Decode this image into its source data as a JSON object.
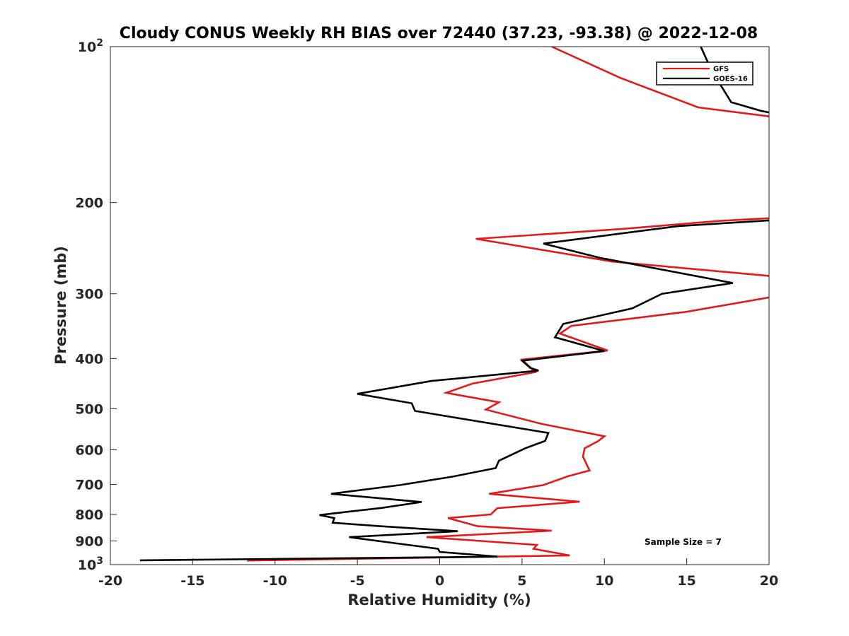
{
  "chart_data": {
    "type": "line",
    "title": "Cloudy CONUS Weekly RH BIAS over 72440 (37.23, -93.38) @ 2022-12-08",
    "xlabel": "Relative Humidity (%)",
    "ylabel": "Pressure (mb)",
    "xlim": [
      -20,
      20
    ],
    "ylim": [
      100,
      1000
    ],
    "y_scale": "log",
    "y_reversed": true,
    "x_ticks": [
      "-20",
      "-15",
      "-10",
      "-5",
      "0",
      "5",
      "10",
      "15",
      "20"
    ],
    "y_ticks": [
      {
        "value": 100,
        "base": "10",
        "exp": "2"
      },
      {
        "value": 200,
        "label": "200"
      },
      {
        "value": 300,
        "label": "300"
      },
      {
        "value": 400,
        "label": "400"
      },
      {
        "value": 500,
        "label": "500"
      },
      {
        "value": 600,
        "label": "600"
      },
      {
        "value": 700,
        "label": "700"
      },
      {
        "value": 800,
        "label": "800"
      },
      {
        "value": 900,
        "label": "900"
      },
      {
        "value": 1000,
        "base": "10",
        "exp": "3"
      }
    ],
    "grid": false,
    "legend_position": "top-right",
    "annotation": "Sample Size = 7",
    "series": [
      {
        "name": "GFS",
        "color": "#e31a1c",
        "points": [
          [
            6.8,
            100
          ],
          [
            11,
            115
          ],
          [
            15.7,
            131
          ],
          [
            20.5,
            137
          ],
          [
            20.5,
            214
          ],
          [
            17,
            217
          ],
          [
            11,
            225
          ],
          [
            2.2,
            235
          ],
          [
            10.5,
            260
          ],
          [
            20.5,
            278
          ],
          [
            20.5,
            303
          ],
          [
            15,
            325
          ],
          [
            8,
            346
          ],
          [
            7.3,
            358
          ],
          [
            10.2,
            386
          ],
          [
            5,
            402
          ],
          [
            5.8,
            425
          ],
          [
            2,
            447
          ],
          [
            0.4,
            466
          ],
          [
            3.6,
            486
          ],
          [
            2.8,
            502
          ],
          [
            6.2,
            535
          ],
          [
            10,
            565
          ],
          [
            9.6,
            578
          ],
          [
            8.8,
            596
          ],
          [
            8.7,
            619
          ],
          [
            9.1,
            658
          ],
          [
            7.8,
            675
          ],
          [
            6.3,
            702
          ],
          [
            3,
            730
          ],
          [
            8.5,
            756
          ],
          [
            3.5,
            778
          ],
          [
            3.1,
            800
          ],
          [
            0.5,
            813
          ],
          [
            2.3,
            843
          ],
          [
            6.8,
            860
          ],
          [
            -0.8,
            885
          ],
          [
            5.9,
            916
          ],
          [
            5.7,
            932
          ],
          [
            7.9,
            960
          ],
          [
            -11.7,
            982
          ]
        ]
      },
      {
        "name": "GOES-16",
        "color": "#000000",
        "points": [
          [
            15.2,
            90
          ],
          [
            16.5,
            111
          ],
          [
            17.7,
            128
          ],
          [
            19.5,
            133
          ],
          [
            20.5,
            135
          ],
          [
            20.5,
            216
          ],
          [
            14.5,
            222
          ],
          [
            6.3,
            240
          ],
          [
            9.8,
            256
          ],
          [
            17.8,
            286
          ],
          [
            13.5,
            300
          ],
          [
            11.7,
            320
          ],
          [
            7.5,
            343
          ],
          [
            7,
            364
          ],
          [
            10,
            387
          ],
          [
            5,
            404
          ],
          [
            5.5,
            417
          ],
          [
            6,
            422
          ],
          [
            -0.5,
            442
          ],
          [
            -5,
            468
          ],
          [
            -1.7,
            488
          ],
          [
            -1.5,
            505
          ],
          [
            6.6,
            557
          ],
          [
            6.4,
            577
          ],
          [
            5.2,
            596
          ],
          [
            3.6,
            630
          ],
          [
            3.4,
            651
          ],
          [
            0.8,
            676
          ],
          [
            -2.4,
            702
          ],
          [
            -6.6,
            730
          ],
          [
            -1.1,
            757
          ],
          [
            -3.5,
            777
          ],
          [
            -7.3,
            802
          ],
          [
            -6.4,
            813
          ],
          [
            -6.5,
            830
          ],
          [
            -3.8,
            842
          ],
          [
            1.1,
            862
          ],
          [
            -5.5,
            885
          ],
          [
            -2.6,
            910
          ],
          [
            -0.1,
            932
          ],
          [
            0,
            945
          ],
          [
            3.5,
            965
          ],
          [
            -18.2,
            981
          ]
        ]
      }
    ]
  }
}
